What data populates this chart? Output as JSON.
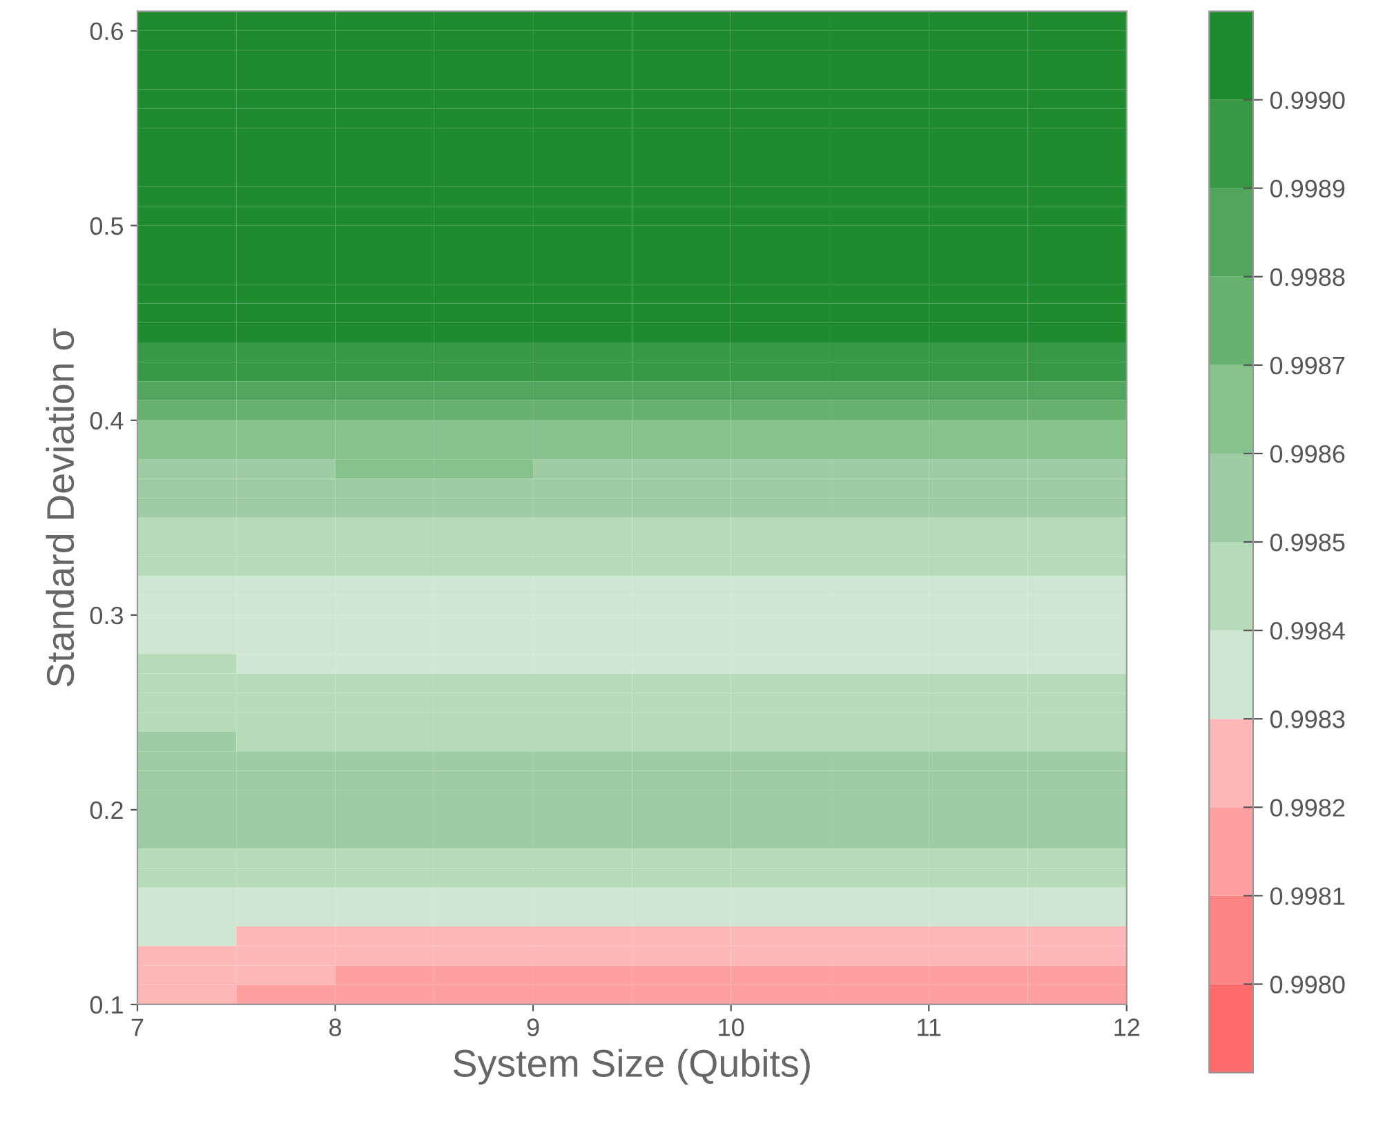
{
  "chart_data": {
    "type": "heatmap",
    "xlabel": "System Size (Qubits)",
    "ylabel": "Standard Deviation σ",
    "x": [
      7.25,
      7.75,
      8.25,
      8.75,
      9.25,
      9.75,
      10.25,
      10.75,
      11.25,
      11.75
    ],
    "y": [
      0.605,
      0.595,
      0.585,
      0.575,
      0.565,
      0.555,
      0.545,
      0.535,
      0.525,
      0.515,
      0.505,
      0.495,
      0.485,
      0.475,
      0.465,
      0.455,
      0.445,
      0.435,
      0.425,
      0.415,
      0.405,
      0.395,
      0.385,
      0.375,
      0.365,
      0.355,
      0.345,
      0.335,
      0.325,
      0.315,
      0.305,
      0.295,
      0.285,
      0.275,
      0.265,
      0.255,
      0.245,
      0.235,
      0.225,
      0.215,
      0.205,
      0.195,
      0.185,
      0.175,
      0.165,
      0.155,
      0.145,
      0.135,
      0.125,
      0.115,
      0.105
    ],
    "cells": [
      [
        0.99905,
        0.99905,
        0.99905,
        0.99905,
        0.99905,
        0.99905,
        0.99905,
        0.99905,
        0.99905,
        0.99905
      ],
      [
        0.99905,
        0.99905,
        0.99905,
        0.99905,
        0.99905,
        0.99905,
        0.99905,
        0.99905,
        0.99905,
        0.99905
      ],
      [
        0.99905,
        0.99905,
        0.99905,
        0.99905,
        0.99905,
        0.99905,
        0.99905,
        0.99905,
        0.99905,
        0.99905
      ],
      [
        0.99905,
        0.99905,
        0.99905,
        0.99905,
        0.99905,
        0.99905,
        0.99905,
        0.99905,
        0.99905,
        0.99905
      ],
      [
        0.99905,
        0.99905,
        0.99905,
        0.99905,
        0.99905,
        0.99905,
        0.99905,
        0.99905,
        0.99905,
        0.99905
      ],
      [
        0.99905,
        0.99905,
        0.99905,
        0.99905,
        0.99905,
        0.99905,
        0.99905,
        0.99905,
        0.99905,
        0.99905
      ],
      [
        0.99905,
        0.99905,
        0.99905,
        0.99905,
        0.99905,
        0.99905,
        0.99905,
        0.99905,
        0.99905,
        0.99905
      ],
      [
        0.99905,
        0.99905,
        0.99905,
        0.99905,
        0.99905,
        0.99905,
        0.99905,
        0.99905,
        0.99905,
        0.99905
      ],
      [
        0.99905,
        0.99905,
        0.99905,
        0.99905,
        0.99905,
        0.99905,
        0.99905,
        0.99905,
        0.99905,
        0.99905
      ],
      [
        0.99905,
        0.99905,
        0.99905,
        0.99905,
        0.99905,
        0.99905,
        0.99905,
        0.99905,
        0.99905,
        0.99905
      ],
      [
        0.99905,
        0.99905,
        0.99905,
        0.99905,
        0.99905,
        0.99905,
        0.99905,
        0.99905,
        0.99905,
        0.99905
      ],
      [
        0.99905,
        0.99905,
        0.99905,
        0.99905,
        0.99905,
        0.99905,
        0.99905,
        0.99905,
        0.99905,
        0.99905
      ],
      [
        0.99905,
        0.99905,
        0.99905,
        0.99905,
        0.99905,
        0.99905,
        0.99905,
        0.99905,
        0.99905,
        0.99905
      ],
      [
        0.99905,
        0.99905,
        0.99905,
        0.99905,
        0.99905,
        0.99905,
        0.99905,
        0.99905,
        0.99905,
        0.99905
      ],
      [
        0.99905,
        0.99905,
        0.99905,
        0.99905,
        0.99905,
        0.99905,
        0.99905,
        0.99905,
        0.99905,
        0.99905
      ],
      [
        0.99905,
        0.99905,
        0.99905,
        0.99905,
        0.99905,
        0.99905,
        0.99905,
        0.99905,
        0.99905,
        0.99905
      ],
      [
        0.99905,
        0.99905,
        0.99905,
        0.99905,
        0.99905,
        0.99905,
        0.99905,
        0.99905,
        0.99905,
        0.99905
      ],
      [
        0.99895,
        0.99895,
        0.99895,
        0.99895,
        0.99895,
        0.99895,
        0.99895,
        0.99895,
        0.99895,
        0.99895
      ],
      [
        0.99895,
        0.99895,
        0.99895,
        0.99895,
        0.99895,
        0.99895,
        0.99895,
        0.99895,
        0.99895,
        0.99895
      ],
      [
        0.99885,
        0.99885,
        0.99885,
        0.99885,
        0.99885,
        0.99885,
        0.99885,
        0.99885,
        0.99885,
        0.99885
      ],
      [
        0.99875,
        0.99875,
        0.99875,
        0.99875,
        0.99875,
        0.99875,
        0.99875,
        0.99875,
        0.99875,
        0.99875
      ],
      [
        0.99865,
        0.99865,
        0.99865,
        0.99865,
        0.99865,
        0.99865,
        0.99865,
        0.99865,
        0.99865,
        0.99865
      ],
      [
        0.99865,
        0.99865,
        0.99865,
        0.99865,
        0.99865,
        0.99865,
        0.99865,
        0.99865,
        0.99865,
        0.99865
      ],
      [
        0.99855,
        0.99855,
        0.99865,
        0.99865,
        0.99855,
        0.99855,
        0.99855,
        0.99855,
        0.99855,
        0.99855
      ],
      [
        0.99855,
        0.99855,
        0.99855,
        0.99855,
        0.99855,
        0.99855,
        0.99855,
        0.99855,
        0.99855,
        0.99855
      ],
      [
        0.99855,
        0.99855,
        0.99855,
        0.99855,
        0.99855,
        0.99855,
        0.99855,
        0.99855,
        0.99855,
        0.99855
      ],
      [
        0.99845,
        0.99845,
        0.99845,
        0.99845,
        0.99845,
        0.99845,
        0.99845,
        0.99845,
        0.99845,
        0.99845
      ],
      [
        0.99845,
        0.99845,
        0.99845,
        0.99845,
        0.99845,
        0.99845,
        0.99845,
        0.99845,
        0.99845,
        0.99845
      ],
      [
        0.99845,
        0.99845,
        0.99845,
        0.99845,
        0.99845,
        0.99845,
        0.99845,
        0.99845,
        0.99845,
        0.99845
      ],
      [
        0.99835,
        0.99835,
        0.99835,
        0.99835,
        0.99835,
        0.99835,
        0.99835,
        0.99835,
        0.99835,
        0.99835
      ],
      [
        0.99835,
        0.99835,
        0.99835,
        0.99835,
        0.99835,
        0.99835,
        0.99835,
        0.99835,
        0.99835,
        0.99835
      ],
      [
        0.99835,
        0.99835,
        0.99835,
        0.99835,
        0.99835,
        0.99835,
        0.99835,
        0.99835,
        0.99835,
        0.99835
      ],
      [
        0.99835,
        0.99835,
        0.99835,
        0.99835,
        0.99835,
        0.99835,
        0.99835,
        0.99835,
        0.99835,
        0.99835
      ],
      [
        0.99845,
        0.99835,
        0.99835,
        0.99835,
        0.99835,
        0.99835,
        0.99835,
        0.99835,
        0.99835,
        0.99835
      ],
      [
        0.99845,
        0.99845,
        0.99845,
        0.99845,
        0.99845,
        0.99845,
        0.99845,
        0.99845,
        0.99845,
        0.99845
      ],
      [
        0.99845,
        0.99845,
        0.99845,
        0.99845,
        0.99845,
        0.99845,
        0.99845,
        0.99845,
        0.99845,
        0.99845
      ],
      [
        0.99845,
        0.99845,
        0.99845,
        0.99845,
        0.99845,
        0.99845,
        0.99845,
        0.99845,
        0.99845,
        0.99845
      ],
      [
        0.99855,
        0.99845,
        0.99845,
        0.99845,
        0.99845,
        0.99845,
        0.99845,
        0.99845,
        0.99845,
        0.99845
      ],
      [
        0.99855,
        0.99855,
        0.99855,
        0.99855,
        0.99855,
        0.99855,
        0.99855,
        0.99855,
        0.99855,
        0.99855
      ],
      [
        0.99855,
        0.99855,
        0.99855,
        0.99855,
        0.99855,
        0.99855,
        0.99855,
        0.99855,
        0.99855,
        0.99855
      ],
      [
        0.99855,
        0.99855,
        0.99855,
        0.99855,
        0.99855,
        0.99855,
        0.99855,
        0.99855,
        0.99855,
        0.99855
      ],
      [
        0.99855,
        0.99855,
        0.99855,
        0.99855,
        0.99855,
        0.99855,
        0.99855,
        0.99855,
        0.99855,
        0.99855
      ],
      [
        0.99855,
        0.99855,
        0.99855,
        0.99855,
        0.99855,
        0.99855,
        0.99855,
        0.99855,
        0.99855,
        0.99855
      ],
      [
        0.99845,
        0.99845,
        0.99845,
        0.99845,
        0.99845,
        0.99845,
        0.99845,
        0.99845,
        0.99845,
        0.99845
      ],
      [
        0.99845,
        0.99845,
        0.99845,
        0.99845,
        0.99845,
        0.99845,
        0.99845,
        0.99845,
        0.99845,
        0.99845
      ],
      [
        0.99835,
        0.99835,
        0.99835,
        0.99835,
        0.99835,
        0.99835,
        0.99835,
        0.99835,
        0.99835,
        0.99835
      ],
      [
        0.99835,
        0.99835,
        0.99835,
        0.99835,
        0.99835,
        0.99835,
        0.99835,
        0.99835,
        0.99835,
        0.99835
      ],
      [
        0.99835,
        0.99825,
        0.99825,
        0.99825,
        0.99825,
        0.99825,
        0.99825,
        0.99825,
        0.99825,
        0.99825
      ],
      [
        0.99825,
        0.99825,
        0.99825,
        0.99825,
        0.99825,
        0.99825,
        0.99825,
        0.99825,
        0.99825,
        0.99825
      ],
      [
        0.99825,
        0.99825,
        0.99815,
        0.99815,
        0.99815,
        0.99815,
        0.99815,
        0.99815,
        0.99815,
        0.99815
      ],
      [
        0.99825,
        0.99815,
        0.99815,
        0.99815,
        0.99815,
        0.99815,
        0.99815,
        0.99815,
        0.99815,
        0.99815
      ]
    ],
    "colors": [
      "#ff6b6b",
      "#ff8585",
      "#ffa0a0",
      "#fdb7b7",
      "#cfe6d2",
      "#b6dbb9",
      "#9ecda3",
      "#86c28c",
      "#68b270",
      "#52a55c",
      "#379845",
      "#1e8c2e"
    ],
    "clim": [
      0.9979,
      0.9991
    ],
    "cticks": [
      {
        "value": 0.998,
        "label": "0.9980"
      },
      {
        "value": 0.9981,
        "label": "0.9981"
      },
      {
        "value": 0.9982,
        "label": "0.9982"
      },
      {
        "value": 0.9983,
        "label": "0.9983"
      },
      {
        "value": 0.9984,
        "label": "0.9984"
      },
      {
        "value": 0.9985,
        "label": "0.9985"
      },
      {
        "value": 0.9986,
        "label": "0.9986"
      },
      {
        "value": 0.9987,
        "label": "0.9987"
      },
      {
        "value": 0.9988,
        "label": "0.9988"
      },
      {
        "value": 0.9989,
        "label": "0.9989"
      },
      {
        "value": 0.999,
        "label": "0.9990"
      }
    ],
    "xlim": [
      7,
      12
    ],
    "ylim": [
      0.1,
      0.61
    ],
    "xticks": [
      7,
      8,
      9,
      10,
      11,
      12
    ],
    "yticks": [
      0.1,
      0.2,
      0.3,
      0.4,
      0.5,
      0.6
    ],
    "grid": false
  }
}
